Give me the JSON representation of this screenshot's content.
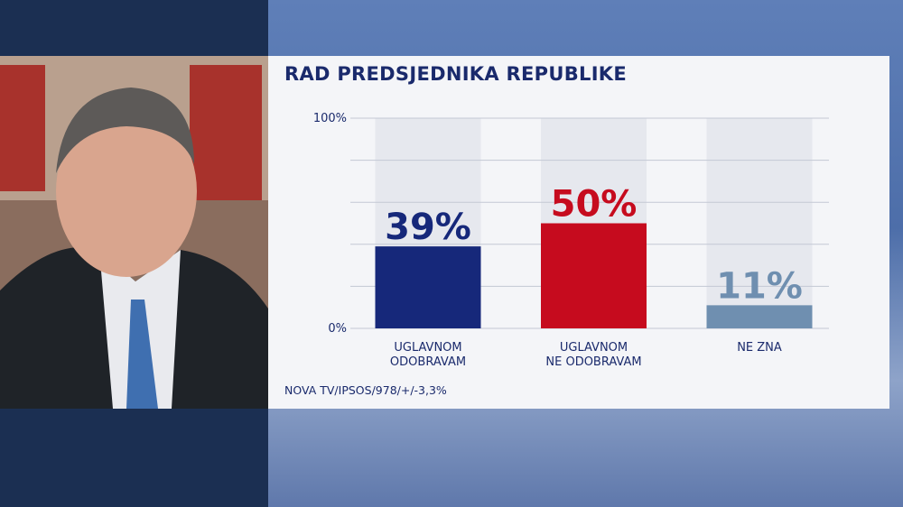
{
  "chart_data": {
    "type": "bar",
    "title": "RAD PREDSJEDNIKA REPUBLIKE",
    "categories": [
      "UGLAVNOM\nODOBRAVAM",
      "UGLAVNOM\nNE ODOBRAVAM",
      "NE ZNA"
    ],
    "values": [
      39,
      50,
      11
    ],
    "value_labels": [
      "39%",
      "50%",
      "11%"
    ],
    "colors": [
      "#16287a",
      "#c60b1e",
      "#6f8fb0"
    ],
    "ylim": [
      0,
      100
    ],
    "yticks": [
      {
        "value": 0,
        "label": "0%"
      },
      {
        "value": 20,
        "label": null
      },
      {
        "value": 40,
        "label": null
      },
      {
        "value": 60,
        "label": null
      },
      {
        "value": 80,
        "label": null
      },
      {
        "value": 100,
        "label": "100%"
      }
    ],
    "grid": true,
    "source": "NOVA TV/IPSOS/978/+/-3,3%"
  }
}
